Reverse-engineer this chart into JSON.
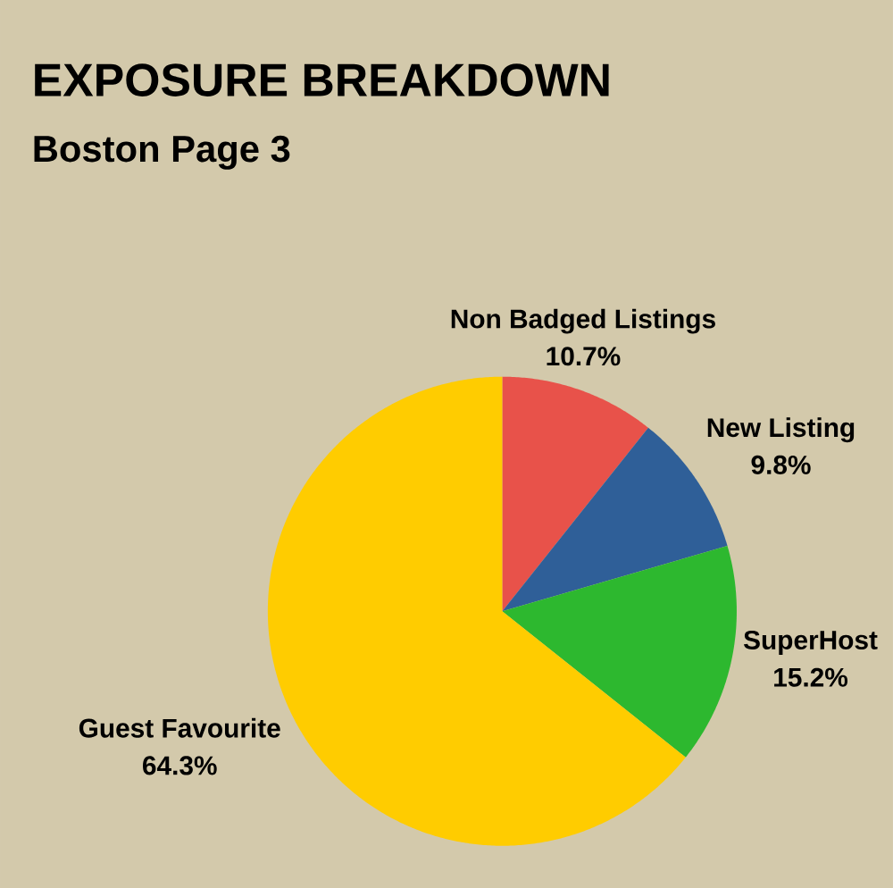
{
  "chart_data": {
    "type": "pie",
    "title": "EXPOSURE BREAKDOWN",
    "subtitle": "Boston Page 3",
    "categories": [
      "Non Badged Listings",
      "New Listing",
      "SuperHost",
      "Guest Favourite"
    ],
    "values": [
      10.7,
      9.8,
      15.2,
      64.3
    ],
    "colors": [
      "#e8524a",
      "#2f5f98",
      "#2db82f",
      "#ffcc00"
    ],
    "value_labels": [
      "10.7%",
      "9.8%",
      "15.2%",
      "64.3%"
    ]
  }
}
